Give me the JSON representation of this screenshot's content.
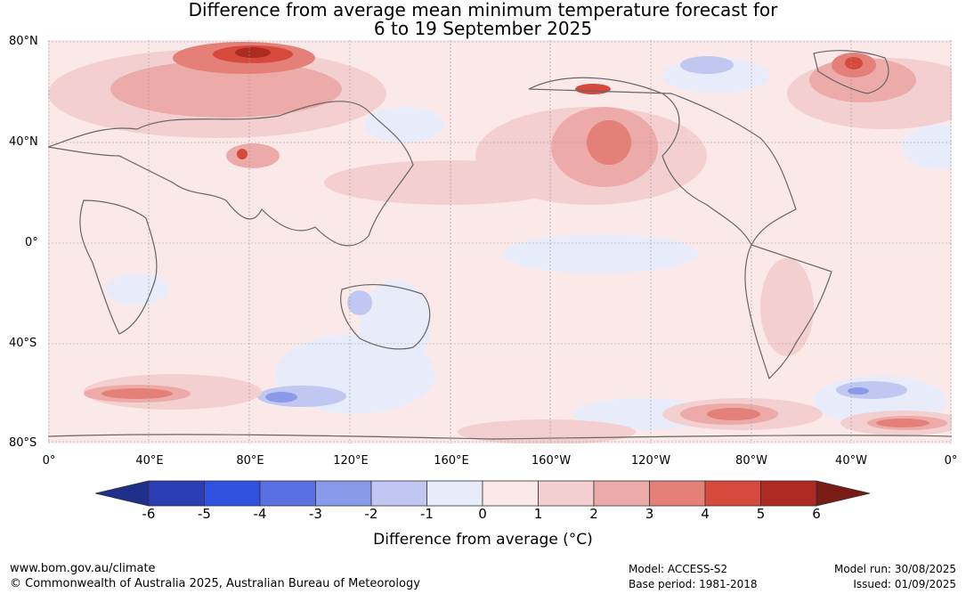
{
  "title": {
    "line1": "Difference from average mean minimum temperature forecast for",
    "line2": "6 to 19 September 2025"
  },
  "map": {
    "lat_labels": [
      "80°N",
      "40°N",
      "0°",
      "40°S",
      "80°S"
    ],
    "lon_labels": [
      "0°",
      "40°E",
      "80°E",
      "120°E",
      "160°E",
      "160°W",
      "120°W",
      "80°W",
      "40°W",
      "0°"
    ],
    "gridlines": true
  },
  "colorbar": {
    "ticks": [
      "-6",
      "-5",
      "-4",
      "-3",
      "-2",
      "-1",
      "0",
      "1",
      "2",
      "3",
      "4",
      "5",
      "6"
    ],
    "colors": [
      "#1f2f8a",
      "#2a3db4",
      "#3050e0",
      "#5a6fe0",
      "#8a99e8",
      "#c0c8f2",
      "#e8ecfa",
      "#fbe9e9",
      "#f3cfcf",
      "#ecaaa8",
      "#e48078",
      "#d64a3e",
      "#ac2a22",
      "#7a1c16"
    ],
    "label": "Difference from average (°C)"
  },
  "footer": {
    "website": "www.bom.gov.au/climate",
    "copyright": "© Commonwealth of Australia 2025, Australian Bureau of Meteorology",
    "model": "Model: ACCESS-S2",
    "base_period": "Base period: 1981-2018",
    "model_run": "Model run: 30/08/2025",
    "issued": "Issued: 01/09/2025"
  }
}
